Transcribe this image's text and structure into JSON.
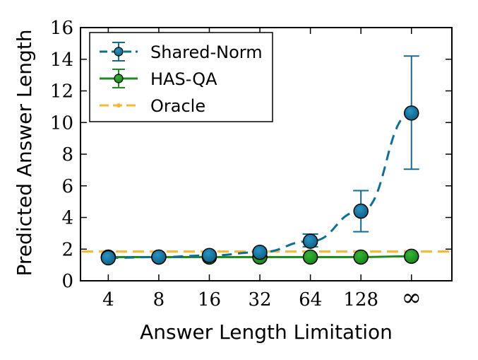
{
  "chart_data": {
    "type": "line",
    "title": "",
    "xlabel": "Answer Length Limitation",
    "ylabel": "Predicted Answer Length",
    "categories": [
      "4",
      "8",
      "16",
      "32",
      "64",
      "128",
      "∞"
    ],
    "ylim": [
      0,
      16
    ],
    "yticks": [
      "0",
      "2",
      "4",
      "6",
      "8",
      "10",
      "12",
      "14",
      "16"
    ],
    "grid": false,
    "legend_position": "top-left",
    "series": [
      {
        "name": "Shared-Norm",
        "color": "#0e6e96",
        "style": "dashed-with-markers-and-errorbars",
        "values": [
          1.45,
          1.5,
          1.6,
          1.8,
          2.5,
          4.4,
          10.6
        ],
        "error_low": [
          1.45,
          1.5,
          1.6,
          1.8,
          2.15,
          3.1,
          7.05
        ],
        "error_high": [
          1.45,
          1.5,
          1.6,
          1.8,
          2.95,
          5.7,
          14.2
        ]
      },
      {
        "name": "HAS-QA",
        "color": "#1a8f1a",
        "style": "solid-with-markers-and-errorbars",
        "values": [
          1.5,
          1.5,
          1.5,
          1.5,
          1.5,
          1.5,
          1.55
        ],
        "error_low": [
          1.5,
          1.5,
          1.5,
          1.5,
          1.5,
          1.5,
          1.55
        ],
        "error_high": [
          1.5,
          1.5,
          1.5,
          1.5,
          1.5,
          1.5,
          1.55
        ]
      },
      {
        "name": "Oracle",
        "color": "#f5b82e",
        "style": "dashed",
        "values": [
          1.85,
          1.85,
          1.85,
          1.85,
          1.85,
          1.85,
          1.85
        ]
      }
    ]
  }
}
